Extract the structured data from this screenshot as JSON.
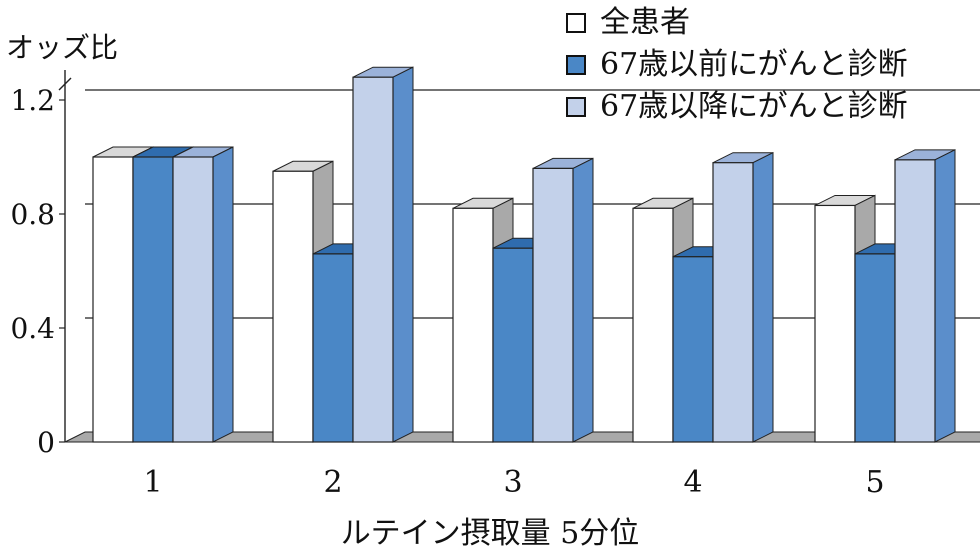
{
  "chart_data": {
    "type": "bar",
    "ylabel": "オッズ比",
    "xlabel": "ルテイン摂取量 5分位",
    "categories": [
      "1",
      "2",
      "3",
      "4",
      "5"
    ],
    "ylim": [
      0,
      1.2
    ],
    "yticks": [
      "0",
      "0.4",
      "0.8",
      "1.2"
    ],
    "ytick_values": [
      0,
      0.4,
      0.8,
      1.2
    ],
    "grid": true,
    "legend_position": "top-right",
    "series": [
      {
        "name": "全患者",
        "values": [
          1.0,
          0.95,
          0.82,
          0.82,
          0.83
        ],
        "color": "#ffffff",
        "side_color": "#a9a9a9",
        "top_color": "#d9d9d9"
      },
      {
        "name": "67歳以前にがんと診断",
        "values": [
          1.0,
          0.66,
          0.68,
          0.65,
          0.66
        ],
        "color": "#4a87c6",
        "side_color": "#a9a9a9",
        "top_color": "#2f6cae"
      },
      {
        "name": "67歳以降にがんと診断",
        "values": [
          1.0,
          1.28,
          0.96,
          0.98,
          0.99
        ],
        "color": "#c3d1ea",
        "side_color": "#5b8ecb",
        "top_color": "#9bb2d9"
      }
    ]
  }
}
